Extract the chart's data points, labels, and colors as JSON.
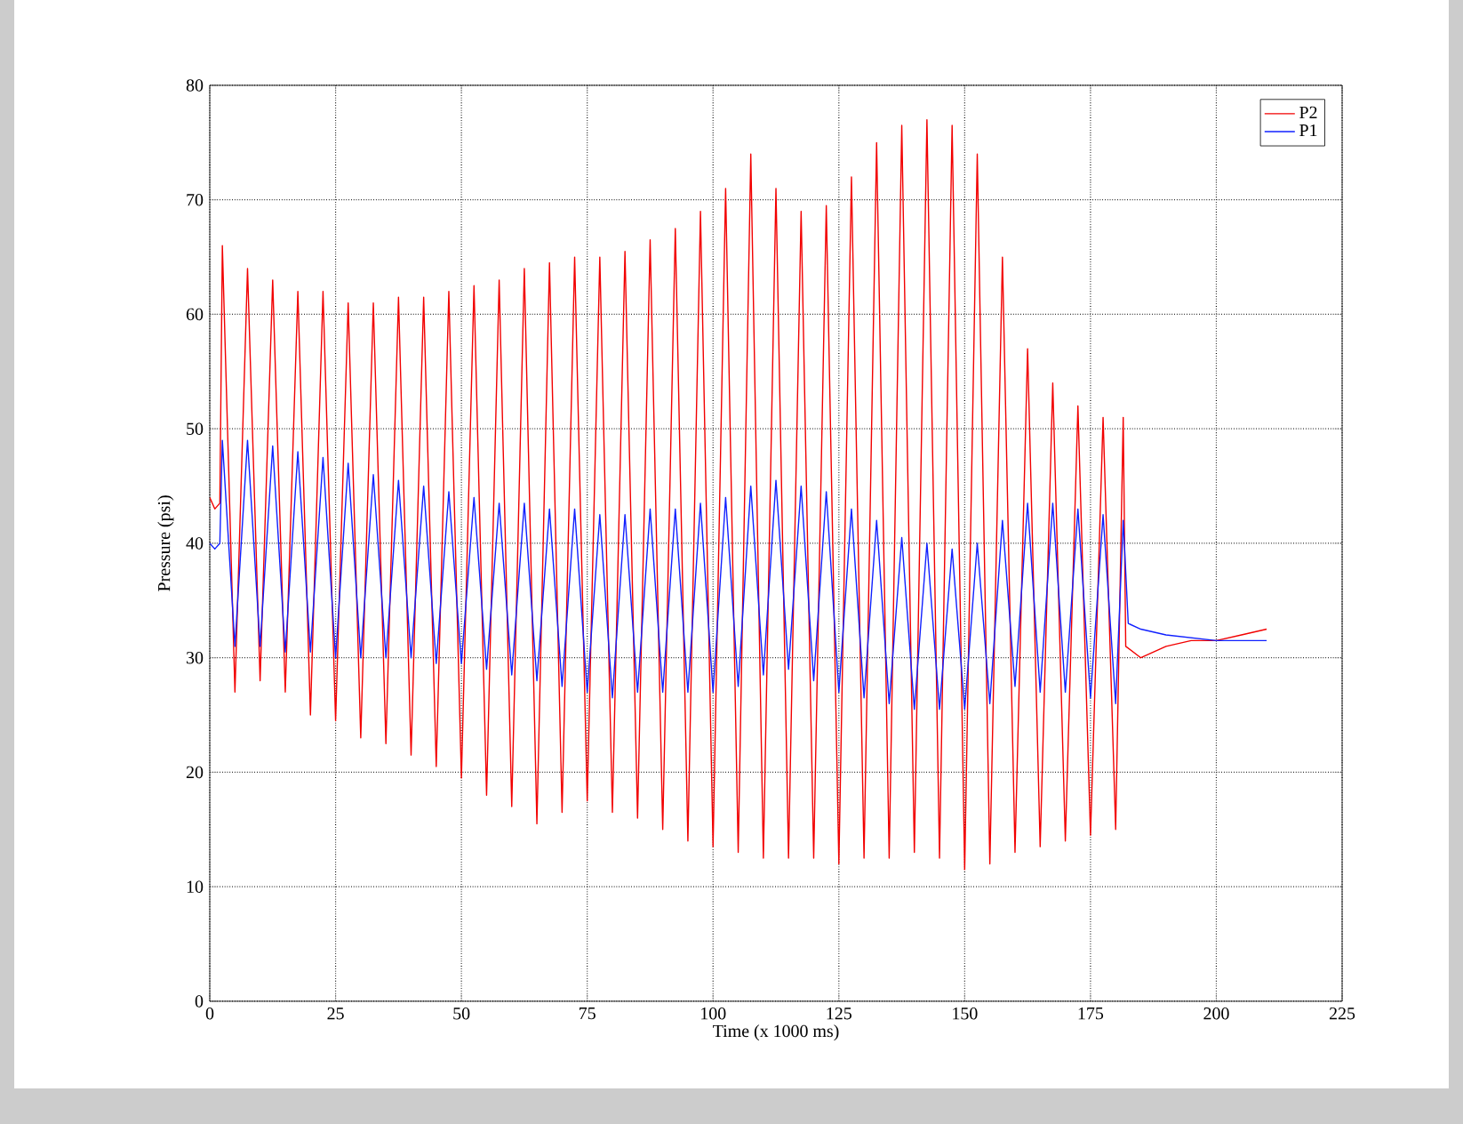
{
  "chart_data": {
    "type": "line",
    "xlabel": "Time (x 1000 ms)",
    "ylabel": "Pressure (psi)",
    "xlim": [
      0,
      225
    ],
    "ylim": [
      0,
      80
    ],
    "xticks": [
      0,
      25,
      50,
      75,
      100,
      125,
      150,
      175,
      200,
      225
    ],
    "yticks": [
      0,
      10,
      20,
      30,
      40,
      50,
      60,
      70,
      80
    ],
    "grid": true,
    "legend": "top right",
    "line_style": "solid",
    "series": [
      {
        "name": "P2",
        "color": "#f20000",
        "x": [
          0,
          1,
          2,
          2.5,
          5,
          7.5,
          10,
          12.5,
          15,
          17.5,
          20,
          22.5,
          25,
          27.5,
          30,
          32.5,
          35,
          37.5,
          40,
          42.5,
          45,
          47.5,
          50,
          52.5,
          55,
          57.5,
          60,
          62.5,
          65,
          67.5,
          70,
          72.5,
          75,
          77.5,
          80,
          82.5,
          85,
          87.5,
          90,
          92.5,
          95,
          97.5,
          100,
          102.5,
          105,
          107.5,
          110,
          112.5,
          115,
          117.5,
          120,
          122.5,
          125,
          127.5,
          130,
          132.5,
          135,
          137.5,
          140,
          142.5,
          145,
          147.5,
          150,
          152.5,
          155,
          157.5,
          160,
          162.5,
          165,
          167.5,
          170,
          172.5,
          175,
          177.5,
          180,
          181.5,
          182,
          185,
          190,
          195,
          200,
          205,
          210
        ],
        "values": [
          44,
          43,
          43.5,
          66,
          27,
          64,
          28,
          63,
          27,
          62,
          25,
          62,
          24.5,
          61,
          23,
          61,
          22.5,
          61.5,
          21.5,
          61.5,
          20.5,
          62,
          19.5,
          62.5,
          18,
          63,
          17,
          64,
          15.5,
          64.5,
          16.5,
          65,
          17.5,
          65,
          16.5,
          65.5,
          16,
          66.5,
          15,
          67.5,
          14,
          69,
          13.5,
          71,
          13,
          74,
          12.5,
          71,
          12.5,
          69,
          12.5,
          69.5,
          12,
          72,
          12.5,
          75,
          12.5,
          76.5,
          13,
          77,
          12.5,
          76.5,
          11.5,
          74,
          12,
          65,
          13,
          57,
          13.5,
          54,
          14,
          52,
          14.5,
          51,
          15,
          51,
          31,
          30,
          31,
          31.5,
          31.5,
          32,
          32.5
        ]
      },
      {
        "name": "P1",
        "color": "#1020ff",
        "x": [
          0,
          1,
          2,
          2.5,
          5,
          7.5,
          10,
          12.5,
          15,
          17.5,
          20,
          22.5,
          25,
          27.5,
          30,
          32.5,
          35,
          37.5,
          40,
          42.5,
          45,
          47.5,
          50,
          52.5,
          55,
          57.5,
          60,
          62.5,
          65,
          67.5,
          70,
          72.5,
          75,
          77.5,
          80,
          82.5,
          85,
          87.5,
          90,
          92.5,
          95,
          97.5,
          100,
          102.5,
          105,
          107.5,
          110,
          112.5,
          115,
          117.5,
          120,
          122.5,
          125,
          127.5,
          130,
          132.5,
          135,
          137.5,
          140,
          142.5,
          145,
          147.5,
          150,
          152.5,
          155,
          157.5,
          160,
          162.5,
          165,
          167.5,
          170,
          172.5,
          175,
          177.5,
          180,
          181.5,
          182.5,
          185,
          190,
          200,
          210
        ],
        "values": [
          40,
          39.5,
          40,
          49,
          31,
          49,
          31,
          48.5,
          30.5,
          48,
          30.5,
          47.5,
          30,
          47,
          30,
          46,
          30,
          45.5,
          30,
          45,
          29.5,
          44.5,
          29.5,
          44,
          29,
          43.5,
          28.5,
          43.5,
          28,
          43,
          27.5,
          43,
          27,
          42.5,
          26.5,
          42.5,
          27,
          43,
          27,
          43,
          27,
          43.5,
          27,
          44,
          27.5,
          45,
          28.5,
          45.5,
          29,
          45,
          28,
          44.5,
          27,
          43,
          26.5,
          42,
          26,
          40.5,
          25.5,
          40,
          25.5,
          39.5,
          25.5,
          40,
          26,
          42,
          27.5,
          43.5,
          27,
          43.5,
          27,
          43,
          26.5,
          42.5,
          26,
          42,
          33,
          32.5,
          32,
          31.5,
          31.5
        ]
      }
    ]
  }
}
